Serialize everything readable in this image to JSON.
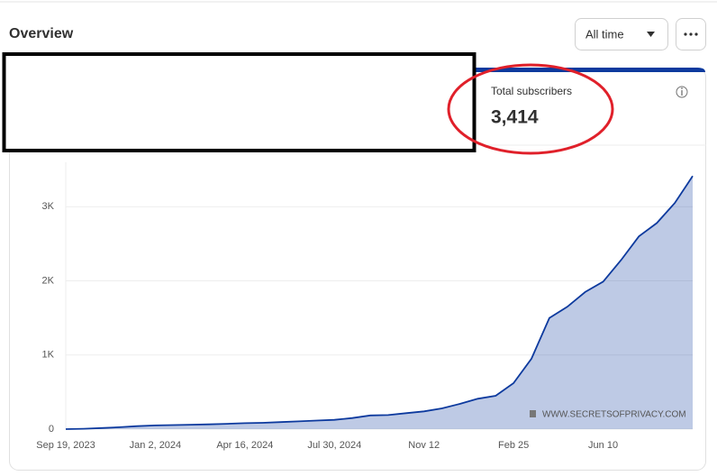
{
  "header": {
    "title": "Overview",
    "range": "All time"
  },
  "card": {
    "label": "Total subscribers",
    "value": "3,414"
  },
  "watermark": "WWW.SECRETSOFPRIVACY.COM",
  "chart_data": {
    "type": "area",
    "categories": [
      "Sep 19, 2023",
      null,
      null,
      null,
      null,
      "Jan 2, 2024",
      null,
      null,
      null,
      null,
      "Apr 16, 2024",
      null,
      null,
      null,
      null,
      "Jul 30, 2024",
      null,
      null,
      null,
      null,
      "Nov 12",
      null,
      null,
      null,
      null,
      "Feb 25",
      null,
      null,
      null,
      null,
      "Jun 10",
      null,
      null,
      null,
      null,
      null
    ],
    "values": [
      0,
      5,
      15,
      25,
      40,
      50,
      55,
      60,
      65,
      72,
      80,
      85,
      95,
      105,
      115,
      125,
      150,
      185,
      190,
      215,
      240,
      280,
      340,
      410,
      450,
      620,
      950,
      1500,
      1650,
      1850,
      1990,
      2280,
      2600,
      2780,
      3050,
      3414
    ],
    "color": "#0d3a9e",
    "ylim": [
      0,
      3600
    ],
    "yticks": [
      0,
      {
        "value": 1000,
        "label": "1K"
      },
      {
        "value": 2000,
        "label": "2K"
      },
      {
        "value": 3000,
        "label": "3K"
      }
    ],
    "grid": true
  }
}
